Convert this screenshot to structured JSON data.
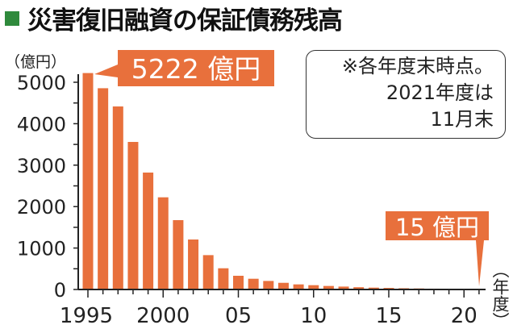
{
  "title": "災害復旧融資の保証債務残高",
  "note": [
    "※各年度末時点。",
    "2021年度は",
    "11月末"
  ],
  "chart_data": {
    "type": "bar",
    "title": "災害復旧融資の保証債務残高",
    "ylabel": "（億円）",
    "xlabel": "（年度）",
    "ylim": [
      0,
      5300
    ],
    "yticks": [
      0,
      1000,
      2000,
      3000,
      4000,
      5000
    ],
    "xtick_labels": [
      {
        "year": 1995,
        "label": "1995"
      },
      {
        "year": 2000,
        "label": "2000"
      },
      {
        "year": 2005,
        "label": "05"
      },
      {
        "year": 2010,
        "label": "10"
      },
      {
        "year": 2015,
        "label": "15"
      },
      {
        "year": 2020,
        "label": "20"
      }
    ],
    "categories": [
      1995,
      1996,
      1997,
      1998,
      1999,
      2000,
      2001,
      2002,
      2003,
      2004,
      2005,
      2006,
      2007,
      2008,
      2009,
      2010,
      2011,
      2012,
      2013,
      2014,
      2015,
      2016,
      2017,
      2018,
      2019,
      2020,
      2021
    ],
    "values": [
      5222,
      4856,
      4416,
      3560,
      2821,
      2224,
      1673,
      1206,
      829,
      512,
      331,
      259,
      206,
      161,
      123,
      104,
      85,
      70,
      55,
      45,
      38,
      30,
      25,
      20,
      18,
      16,
      15
    ],
    "bar_color": "#e8703c",
    "annotations": [
      {
        "year": 1995,
        "label": "5222 億円"
      },
      {
        "year": 2021,
        "label": "15 億円"
      }
    ],
    "grid": false,
    "legend": "none"
  }
}
